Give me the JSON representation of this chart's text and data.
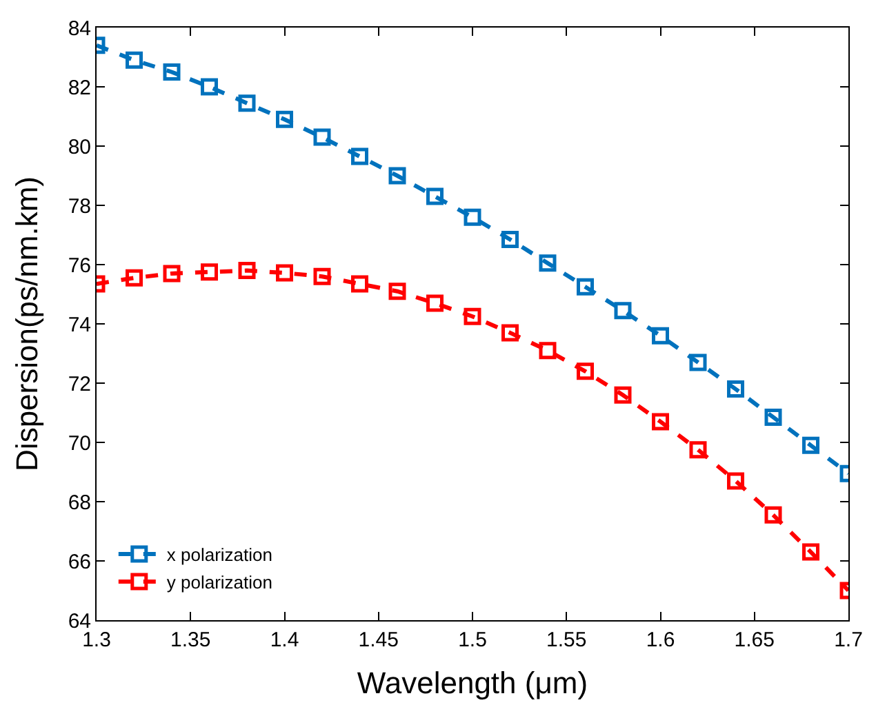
{
  "chart_data": {
    "type": "line",
    "xlabel": "Wavelength (μm)",
    "ylabel": "Dispersion(ps/nm.km)",
    "x": [
      1.3,
      1.32,
      1.34,
      1.36,
      1.38,
      1.4,
      1.42,
      1.44,
      1.46,
      1.48,
      1.5,
      1.52,
      1.54,
      1.56,
      1.58,
      1.6,
      1.62,
      1.64,
      1.66,
      1.68,
      1.7
    ],
    "series": [
      {
        "name": "x polarization",
        "color": "#0072bd",
        "values": [
          83.4,
          82.9,
          82.5,
          82.0,
          81.45,
          80.9,
          80.3,
          79.65,
          79.0,
          78.3,
          77.6,
          76.85,
          76.05,
          75.25,
          74.45,
          73.6,
          72.7,
          71.8,
          70.85,
          69.9,
          68.95
        ]
      },
      {
        "name": "y polarization",
        "color": "#ff0000",
        "values": [
          75.35,
          75.55,
          75.7,
          75.75,
          75.8,
          75.72,
          75.6,
          75.35,
          75.1,
          74.7,
          74.25,
          73.7,
          73.1,
          72.4,
          71.6,
          70.7,
          69.75,
          68.7,
          67.55,
          66.3,
          65.0
        ]
      }
    ],
    "xlim": [
      1.3,
      1.7
    ],
    "xticks": [
      1.3,
      1.35,
      1.4,
      1.45,
      1.5,
      1.55,
      1.6,
      1.65,
      1.7
    ],
    "ylim": [
      64,
      84
    ],
    "yticks": [
      64,
      66,
      68,
      70,
      72,
      74,
      76,
      78,
      80,
      82,
      84
    ],
    "legend": "bottom left",
    "marker": "square",
    "line_style": "dashed"
  }
}
